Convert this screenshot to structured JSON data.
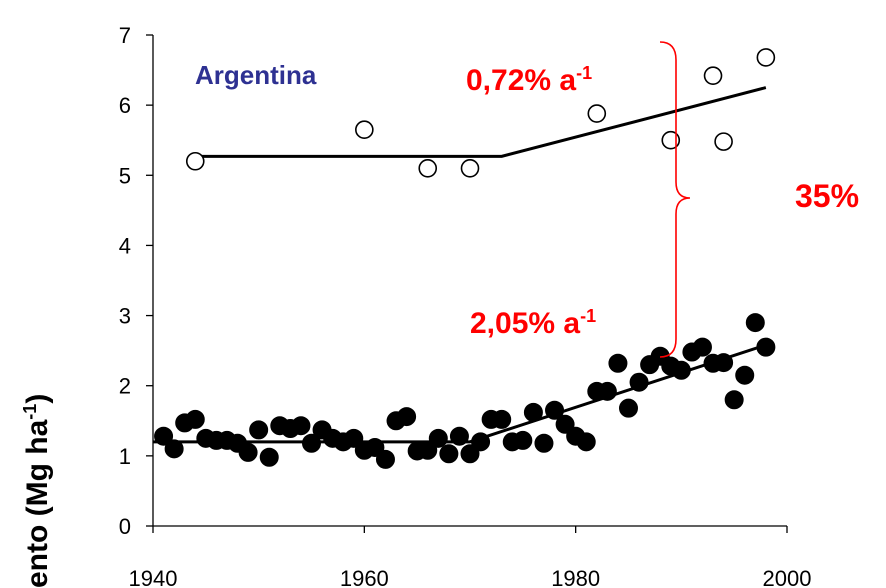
{
  "chart_data": {
    "type": "scatter",
    "title": "",
    "xlabel": "",
    "ylabel": "ento (Mg ha",
    "ylabel_superscript": "-1",
    "ylabel_suffix": ")",
    "xlim": [
      1940,
      2000
    ],
    "ylim": [
      0,
      7
    ],
    "xticks": [
      "1940",
      "1960",
      "1980",
      "2000"
    ],
    "yticks": [
      "0",
      "1",
      "2",
      "3",
      "4",
      "5",
      "6",
      "7"
    ],
    "grid": false,
    "series": [
      {
        "marker": "open-circle",
        "x": [
          1944,
          1960,
          1966,
          1970,
          1982,
          1989,
          1993,
          1994,
          1998
        ],
        "y": [
          5.2,
          5.65,
          5.1,
          5.1,
          5.88,
          5.5,
          6.42,
          5.48,
          6.68
        ],
        "trend": [
          [
            1944,
            5.27
          ],
          [
            1973,
            5.27
          ],
          [
            1998,
            6.25
          ]
        ]
      },
      {
        "marker": "filled-circle",
        "x": [
          1941,
          1942,
          1943,
          1944,
          1945,
          1946,
          1947,
          1948,
          1949,
          1950,
          1951,
          1952,
          1953,
          1954,
          1955,
          1956,
          1957,
          1958,
          1959,
          1960,
          1961,
          1962,
          1963,
          1964,
          1965,
          1966,
          1967,
          1968,
          1969,
          1970,
          1971,
          1972,
          1973,
          1974,
          1975,
          1976,
          1977,
          1978,
          1979,
          1980,
          1981,
          1982,
          1983,
          1984,
          1985,
          1986,
          1987,
          1988,
          1989,
          1990,
          1991,
          1992,
          1993,
          1994,
          1995,
          1996,
          1997,
          1998
        ],
        "y": [
          1.28,
          1.1,
          1.47,
          1.52,
          1.25,
          1.22,
          1.22,
          1.18,
          1.05,
          1.37,
          0.98,
          1.43,
          1.39,
          1.43,
          1.18,
          1.37,
          1.25,
          1.2,
          1.25,
          1.08,
          1.12,
          0.95,
          1.5,
          1.56,
          1.07,
          1.08,
          1.25,
          1.03,
          1.28,
          1.03,
          1.2,
          1.52,
          1.52,
          1.2,
          1.22,
          1.62,
          1.18,
          1.65,
          1.45,
          1.28,
          1.2,
          1.92,
          1.92,
          2.32,
          1.68,
          2.05,
          2.3,
          2.42,
          2.28,
          2.22,
          2.48,
          2.55,
          2.32,
          2.33,
          1.8,
          2.15,
          2.9,
          2.55
        ],
        "trend": [
          [
            1940,
            1.2
          ],
          [
            1970,
            1.2
          ],
          [
            1998,
            2.58
          ]
        ]
      }
    ],
    "annotations": {
      "country": "Argentina",
      "upper_rate": "0,72% a",
      "upper_rate_sup": "-1",
      "lower_rate": "2,05% a",
      "lower_rate_sup": "-1",
      "gap": "35%"
    },
    "colors": {
      "country": "#2e3192",
      "annotation": "#ff0000",
      "marks": "#000000"
    }
  }
}
